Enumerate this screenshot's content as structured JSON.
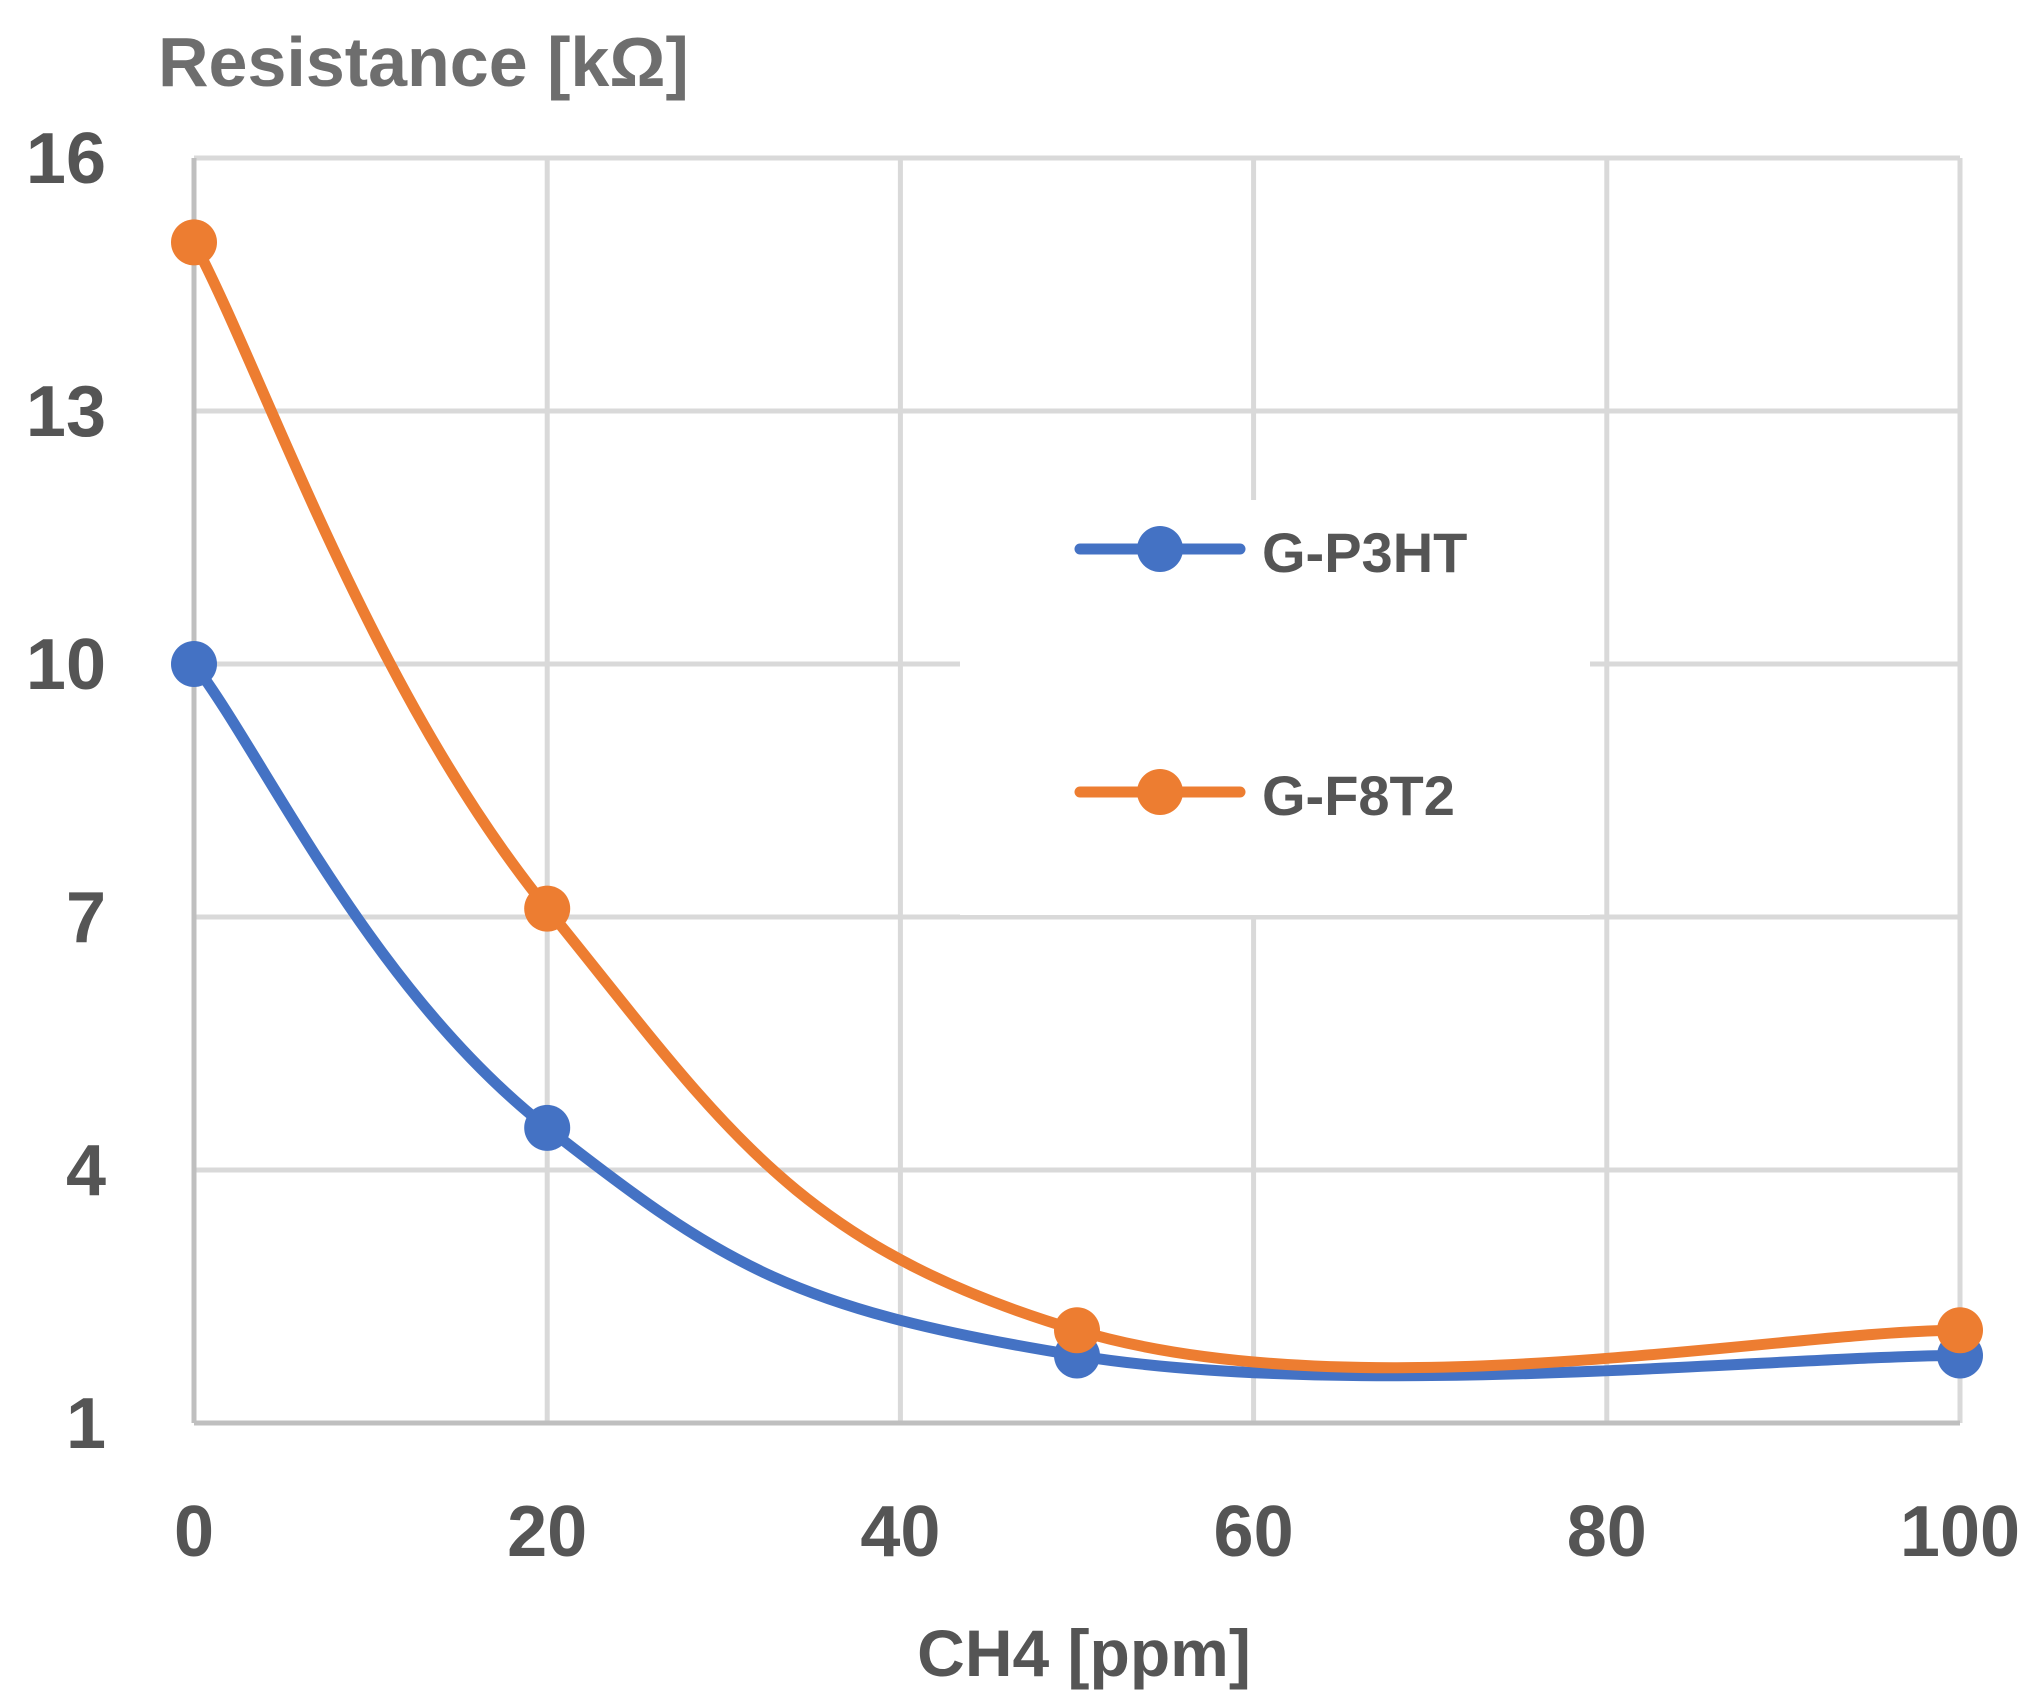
{
  "chart_data": {
    "type": "line",
    "smooth": true,
    "ylabel": "Resistance [kΩ]",
    "xlabel": "CH4 [ppm]",
    "xlim": [
      0,
      100
    ],
    "ylim": [
      1,
      16
    ],
    "xticks": [
      0,
      20,
      40,
      60,
      80,
      100
    ],
    "yticks": [
      1,
      4,
      7,
      10,
      13,
      16
    ],
    "x_tick_labels": [
      "0",
      "20",
      "40",
      "60",
      "80",
      "100"
    ],
    "y_tick_labels": [
      "1",
      "4",
      "7",
      "10",
      "13",
      "16"
    ],
    "grid": true,
    "legend_position": "center-right",
    "series": [
      {
        "name": "G-P3HT",
        "color": "#4472C4",
        "x": [
          0,
          20,
          50,
          100
        ],
        "y": [
          10,
          4.5,
          1.8,
          1.8
        ]
      },
      {
        "name": "G-F8T2",
        "color": "#ED7D31",
        "x": [
          0,
          20,
          50,
          100
        ],
        "y": [
          15,
          7.1,
          2.1,
          2.1
        ]
      }
    ]
  }
}
